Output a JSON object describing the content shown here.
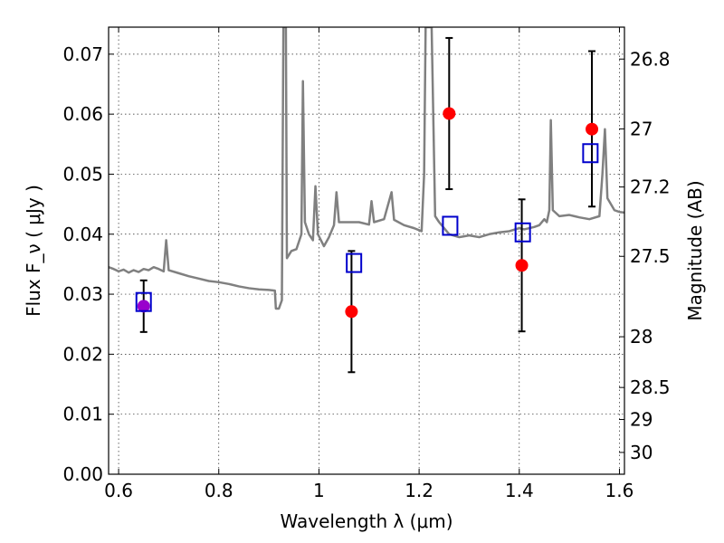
{
  "chart_data": {
    "type": "scatter",
    "title": "",
    "xlabel": "Wavelength  λ (μm)",
    "ylabel": "Flux  F_ν  ( μJy )",
    "ylabel_right": "Magnitude (AB)",
    "xlim": [
      0.58,
      1.61
    ],
    "ylim": [
      0.0,
      0.0745
    ],
    "grid": true,
    "x_ticks": [
      0.6,
      0.8,
      1.0,
      1.2,
      1.4,
      1.6
    ],
    "x_tick_labels": [
      "0.6",
      "0.8",
      "1",
      "1.2",
      "1.4",
      "1.6"
    ],
    "y_ticks": [
      0.0,
      0.01,
      0.02,
      0.03,
      0.04,
      0.05,
      0.06,
      0.07
    ],
    "y_tick_labels": [
      "0.00",
      "0.01",
      "0.02",
      "0.03",
      "0.04",
      "0.05",
      "0.06",
      "0.07"
    ],
    "right_ticks": [
      {
        "mag": 26.8,
        "label": "26.8"
      },
      {
        "mag": 27.0,
        "label": "27"
      },
      {
        "mag": 27.2,
        "label": "27.2"
      },
      {
        "mag": 27.5,
        "label": "27.5"
      },
      {
        "mag": 28.0,
        "label": "28"
      },
      {
        "mag": 28.5,
        "label": "28.5"
      },
      {
        "mag": 29.0,
        "label": "29"
      },
      {
        "mag": 30.0,
        "label": "30"
      }
    ],
    "colors": {
      "spectrum": "#808080",
      "observed": "#ff0000",
      "observed_first": "#9900cc",
      "model": "#0000cc",
      "errorbar": "#000000"
    },
    "series": [
      {
        "kind": "line",
        "points": [
          [
            0.58,
            0.0345
          ],
          [
            0.59,
            0.0342
          ],
          [
            0.6,
            0.0338
          ],
          [
            0.61,
            0.0341
          ],
          [
            0.62,
            0.0336
          ],
          [
            0.63,
            0.034
          ],
          [
            0.64,
            0.0337
          ],
          [
            0.65,
            0.0342
          ],
          [
            0.66,
            0.034
          ],
          [
            0.67,
            0.0345
          ],
          [
            0.68,
            0.0342
          ],
          [
            0.69,
            0.0338
          ],
          [
            0.695,
            0.039
          ],
          [
            0.7,
            0.034
          ],
          [
            0.72,
            0.0335
          ],
          [
            0.74,
            0.033
          ],
          [
            0.76,
            0.0326
          ],
          [
            0.78,
            0.0322
          ],
          [
            0.8,
            0.032
          ],
          [
            0.82,
            0.0317
          ],
          [
            0.84,
            0.0313
          ],
          [
            0.86,
            0.031
          ],
          [
            0.88,
            0.0308
          ],
          [
            0.9,
            0.0307
          ],
          [
            0.912,
            0.0306
          ],
          [
            0.914,
            0.0276
          ],
          [
            0.92,
            0.0276
          ],
          [
            0.926,
            0.029
          ],
          [
            0.929,
            0.0745
          ],
          [
            0.934,
            0.0745
          ],
          [
            0.936,
            0.036
          ],
          [
            0.945,
            0.0372
          ],
          [
            0.955,
            0.0375
          ],
          [
            0.965,
            0.04
          ],
          [
            0.968,
            0.0655
          ],
          [
            0.972,
            0.042
          ],
          [
            0.98,
            0.04
          ],
          [
            0.988,
            0.039
          ],
          [
            0.993,
            0.048
          ],
          [
            0.998,
            0.04
          ],
          [
            1.01,
            0.038
          ],
          [
            1.02,
            0.0395
          ],
          [
            1.03,
            0.0415
          ],
          [
            1.035,
            0.047
          ],
          [
            1.04,
            0.042
          ],
          [
            1.06,
            0.042
          ],
          [
            1.08,
            0.042
          ],
          [
            1.1,
            0.0416
          ],
          [
            1.105,
            0.0455
          ],
          [
            1.11,
            0.042
          ],
          [
            1.13,
            0.0425
          ],
          [
            1.145,
            0.047
          ],
          [
            1.15,
            0.0424
          ],
          [
            1.17,
            0.0415
          ],
          [
            1.19,
            0.041
          ],
          [
            1.205,
            0.0405
          ],
          [
            1.21,
            0.05
          ],
          [
            1.213,
            0.0745
          ],
          [
            1.225,
            0.0745
          ],
          [
            1.232,
            0.043
          ],
          [
            1.24,
            0.042
          ],
          [
            1.26,
            0.04
          ],
          [
            1.28,
            0.0395
          ],
          [
            1.3,
            0.0398
          ],
          [
            1.32,
            0.0395
          ],
          [
            1.34,
            0.04
          ],
          [
            1.36,
            0.0403
          ],
          [
            1.38,
            0.0405
          ],
          [
            1.4,
            0.041
          ],
          [
            1.41,
            0.0408
          ],
          [
            1.43,
            0.0412
          ],
          [
            1.44,
            0.0415
          ],
          [
            1.45,
            0.0425
          ],
          [
            1.455,
            0.042
          ],
          [
            1.46,
            0.044
          ],
          [
            1.463,
            0.059
          ],
          [
            1.467,
            0.044
          ],
          [
            1.48,
            0.043
          ],
          [
            1.5,
            0.0432
          ],
          [
            1.52,
            0.0428
          ],
          [
            1.54,
            0.0425
          ],
          [
            1.56,
            0.043
          ],
          [
            1.566,
            0.05
          ],
          [
            1.571,
            0.0575
          ],
          [
            1.576,
            0.046
          ],
          [
            1.59,
            0.044
          ],
          [
            1.6,
            0.0437
          ],
          [
            1.61,
            0.0436
          ]
        ]
      },
      {
        "kind": "observed_points",
        "points": [
          {
            "x": 0.65,
            "y": 0.028,
            "yerr_lo": 0.0237,
            "yerr_hi": 0.0323
          },
          {
            "x": 1.065,
            "y": 0.0271,
            "yerr_lo": 0.017,
            "yerr_hi": 0.0372
          },
          {
            "x": 1.26,
            "y": 0.0601,
            "yerr_lo": 0.0475,
            "yerr_hi": 0.0727
          },
          {
            "x": 1.405,
            "y": 0.0348,
            "yerr_lo": 0.0238,
            "yerr_hi": 0.0458
          },
          {
            "x": 1.545,
            "y": 0.0575,
            "yerr_lo": 0.0446,
            "yerr_hi": 0.0705
          }
        ]
      },
      {
        "kind": "model_points",
        "points": [
          {
            "x": 0.65,
            "y": 0.0287
          },
          {
            "x": 1.07,
            "y": 0.0352
          },
          {
            "x": 1.262,
            "y": 0.0414
          },
          {
            "x": 1.407,
            "y": 0.0403
          },
          {
            "x": 1.542,
            "y": 0.0535
          }
        ]
      }
    ]
  }
}
